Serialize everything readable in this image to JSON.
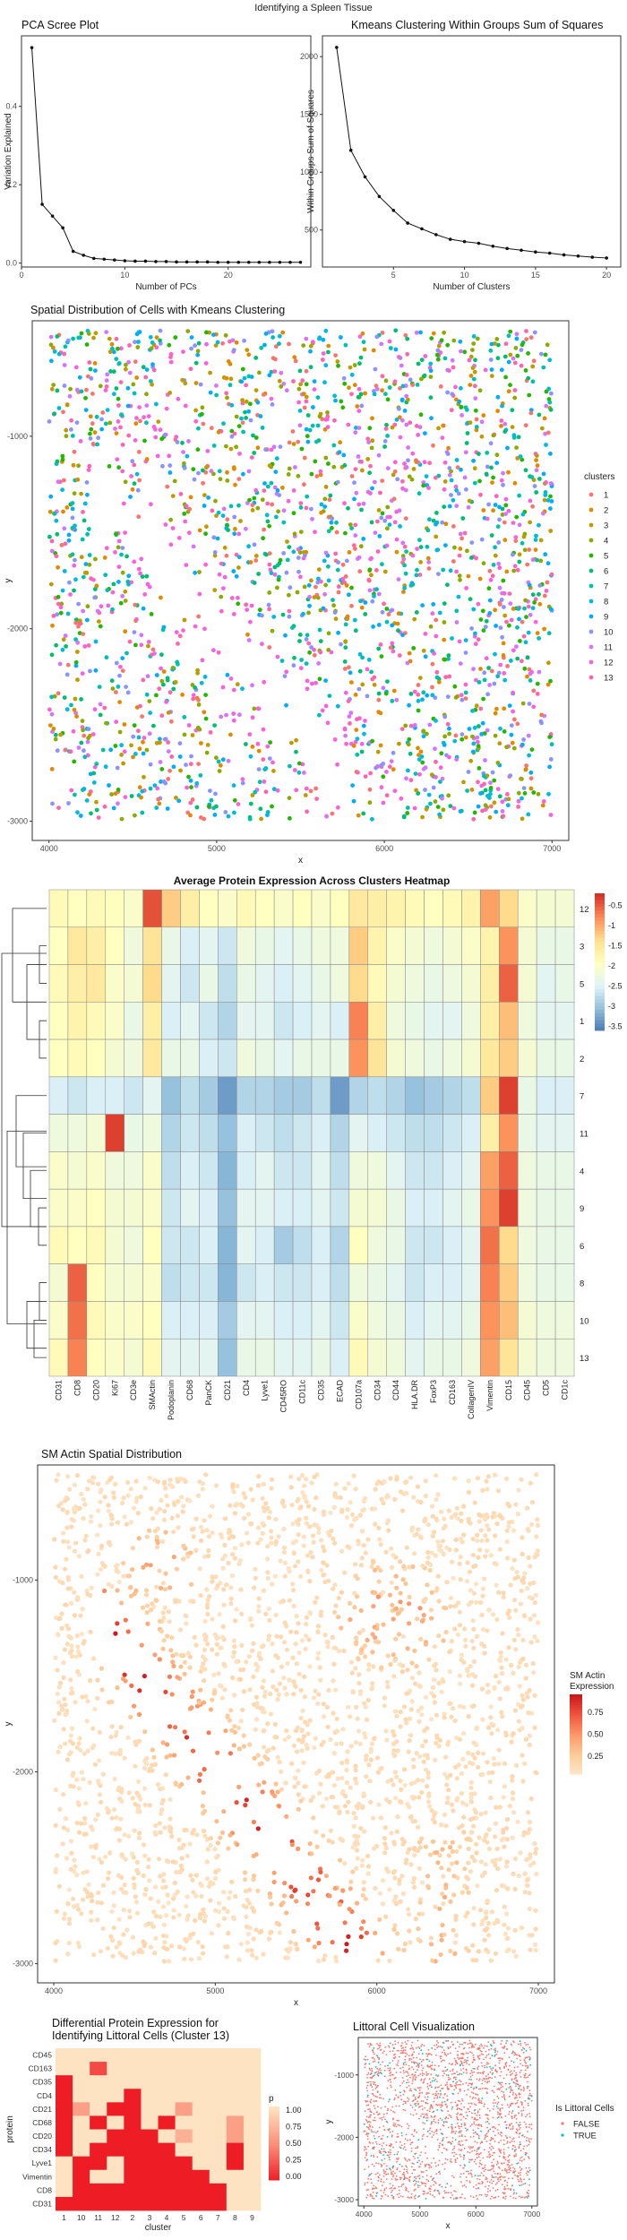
{
  "page_title": "Identifying a Spleen Tissue",
  "chart_data": [
    {
      "id": "pca_scree",
      "type": "line",
      "title": "PCA Scree Plot",
      "xlabel": "Number of PCs",
      "ylabel": "Variation Explained",
      "xlim": [
        0,
        28
      ],
      "ylim": [
        -0.01,
        0.58
      ],
      "xticks": [
        0,
        10,
        20
      ],
      "yticks": [
        0.0,
        0.2,
        0.4
      ],
      "ytick_labels": [
        "0.0",
        "0.2",
        "0.4"
      ],
      "x": [
        1,
        2,
        3,
        4,
        5,
        6,
        7,
        8,
        9,
        10,
        11,
        12,
        13,
        14,
        15,
        16,
        17,
        18,
        19,
        20,
        21,
        22,
        23,
        24,
        25,
        26,
        27
      ],
      "y": [
        0.55,
        0.15,
        0.12,
        0.09,
        0.03,
        0.02,
        0.012,
        0.01,
        0.008,
        0.006,
        0.005,
        0.005,
        0.004,
        0.004,
        0.003,
        0.003,
        0.003,
        0.003,
        0.002,
        0.002,
        0.002,
        0.002,
        0.002,
        0.002,
        0.002,
        0.002,
        0.002
      ]
    },
    {
      "id": "kmeans_wss",
      "type": "line",
      "title": "Kmeans Clustering Within Groups Sum of Squares",
      "xlabel": "Number of Clusters",
      "ylabel": "Within Groups Sum of Squares",
      "xlim": [
        0,
        21
      ],
      "ylim": [
        180,
        2180
      ],
      "xticks": [
        5,
        10,
        15,
        20
      ],
      "yticks": [
        500,
        1000,
        1500,
        2000
      ],
      "x": [
        1,
        2,
        3,
        4,
        5,
        6,
        7,
        8,
        9,
        10,
        11,
        12,
        13,
        14,
        15,
        16,
        17,
        18,
        19,
        20
      ],
      "y": [
        2080,
        1190,
        960,
        790,
        670,
        560,
        510,
        460,
        420,
        400,
        385,
        360,
        340,
        325,
        310,
        300,
        285,
        275,
        265,
        258
      ]
    },
    {
      "id": "spatial_clusters",
      "type": "scatter",
      "title": "Spatial Distribution of Cells with Kmeans Clustering",
      "xlabel": "x",
      "ylabel": "y",
      "xlim": [
        3900,
        7100
      ],
      "ylim": [
        -3100,
        -400
      ],
      "xticks": [
        4000,
        5000,
        6000,
        7000
      ],
      "yticks": [
        -3000,
        -2000,
        -1000
      ],
      "legend_title": "clusters",
      "legend_position": "right",
      "categories": [
        "1",
        "2",
        "3",
        "4",
        "5",
        "6",
        "7",
        "8",
        "9",
        "10",
        "11",
        "12",
        "13"
      ],
      "colors": [
        "#F8766D",
        "#E18A00",
        "#BE9C00",
        "#8CAB00",
        "#24B700",
        "#00BE70",
        "#00C1AB",
        "#00BBDA",
        "#00ACFC",
        "#8B93FF",
        "#D575FE",
        "#F962DD",
        "#FF65AC"
      ]
    },
    {
      "id": "protein_heatmap",
      "type": "heatmap",
      "title": "Average Protein Expression Across Clusters Heatmap",
      "columns": [
        "CD31",
        "CD8",
        "CD20",
        "Ki67",
        "CD3e",
        "SMActin",
        "Podoplanin",
        "CD68",
        "PanCK",
        "CD21",
        "CD4",
        "Lyve1",
        "CD45RO",
        "CD11c",
        "CD35",
        "ECAD",
        "CD107a",
        "CD34",
        "CD44",
        "HLA.DR",
        "FoxP3",
        "CD163",
        "CollagenIV",
        "Vimentin",
        "CD15",
        "CD45",
        "CD5",
        "CD1c"
      ],
      "rows": [
        "12",
        "3",
        "5",
        "1",
        "2",
        "7",
        "11",
        "4",
        "9",
        "6",
        "8",
        "10",
        "13"
      ],
      "values": [
        [
          -1.8,
          -1.9,
          -1.8,
          -1.9,
          -2.0,
          -0.4,
          -1.2,
          -1.6,
          -1.9,
          -2.0,
          -1.8,
          -1.9,
          -2.0,
          -1.9,
          -2.0,
          -1.9,
          -1.5,
          -1.6,
          -1.7,
          -1.8,
          -1.9,
          -1.8,
          -1.7,
          -0.9,
          -1.3,
          -2.0,
          -2.1,
          -2.1
        ],
        [
          -1.9,
          -1.5,
          -1.6,
          -1.9,
          -2.2,
          -1.4,
          -2.3,
          -2.5,
          -2.4,
          -2.6,
          -2.2,
          -2.3,
          -2.4,
          -2.3,
          -2.2,
          -2.2,
          -1.2,
          -1.7,
          -2.0,
          -2.1,
          -2.2,
          -2.1,
          -2.0,
          -1.7,
          -0.8,
          -2.1,
          -2.3,
          -2.3
        ],
        [
          -1.8,
          -1.6,
          -1.5,
          -2.0,
          -2.1,
          -1.3,
          -2.4,
          -2.6,
          -2.3,
          -2.7,
          -2.3,
          -2.4,
          -2.5,
          -2.4,
          -2.3,
          -2.2,
          -1.3,
          -1.8,
          -2.1,
          -2.2,
          -2.3,
          -2.2,
          -2.1,
          -1.6,
          -0.5,
          -2.1,
          -2.4,
          -2.3
        ],
        [
          -1.9,
          -1.7,
          -1.8,
          -2.0,
          -2.3,
          -1.6,
          -2.5,
          -2.4,
          -2.6,
          -2.8,
          -2.4,
          -2.4,
          -2.6,
          -2.5,
          -2.4,
          -2.5,
          -0.7,
          -1.6,
          -2.2,
          -2.3,
          -2.4,
          -2.4,
          -2.2,
          -1.6,
          -1.1,
          -2.2,
          -2.4,
          -2.4
        ],
        [
          -1.9,
          -1.8,
          -1.9,
          -2.1,
          -2.2,
          -1.5,
          -2.3,
          -2.3,
          -2.5,
          -2.6,
          -2.2,
          -2.3,
          -2.4,
          -2.3,
          -2.3,
          -2.3,
          -0.8,
          -1.4,
          -2.1,
          -2.2,
          -2.3,
          -2.2,
          -2.1,
          -1.5,
          -1.2,
          -2.1,
          -2.3,
          -2.3
        ],
        [
          -2.5,
          -2.6,
          -2.5,
          -2.5,
          -2.6,
          -2.4,
          -3.0,
          -2.7,
          -2.9,
          -3.3,
          -2.8,
          -2.8,
          -2.9,
          -2.9,
          -2.7,
          -3.3,
          -2.8,
          -2.7,
          -2.8,
          -3.0,
          -2.9,
          -2.8,
          -2.7,
          -1.2,
          -0.3,
          -2.3,
          -2.5,
          -2.5
        ],
        [
          -2.2,
          -2.2,
          -2.1,
          -0.3,
          -2.3,
          -2.2,
          -2.8,
          -2.6,
          -2.7,
          -3.0,
          -2.5,
          -2.6,
          -2.7,
          -2.6,
          -2.5,
          -2.8,
          -2.4,
          -2.5,
          -2.6,
          -2.7,
          -2.7,
          -2.6,
          -2.5,
          -1.6,
          -0.8,
          -2.3,
          -2.4,
          -2.4
        ],
        [
          -2.0,
          -2.1,
          -2.0,
          -2.2,
          -2.2,
          -2.0,
          -2.7,
          -2.5,
          -2.6,
          -3.1,
          -2.5,
          -2.4,
          -2.6,
          -2.6,
          -2.4,
          -2.7,
          -2.2,
          -2.2,
          -2.4,
          -2.6,
          -2.6,
          -2.5,
          -2.4,
          -0.9,
          -0.5,
          -2.2,
          -2.3,
          -2.3
        ],
        [
          -2.0,
          -2.0,
          -1.9,
          -2.1,
          -2.1,
          -2.0,
          -2.6,
          -2.4,
          -2.5,
          -3.0,
          -2.4,
          -2.4,
          -2.5,
          -2.5,
          -2.4,
          -2.6,
          -2.1,
          -2.1,
          -2.3,
          -2.5,
          -2.5,
          -2.4,
          -2.3,
          -0.8,
          -0.3,
          -2.2,
          -2.3,
          -2.3
        ],
        [
          -1.8,
          -1.9,
          -1.8,
          -2.1,
          -2.2,
          -1.9,
          -2.6,
          -2.6,
          -2.5,
          -3.1,
          -2.4,
          -2.5,
          -2.9,
          -2.7,
          -2.5,
          -2.8,
          -1.9,
          -2.2,
          -2.3,
          -2.6,
          -2.6,
          -2.5,
          -2.4,
          -0.6,
          -1.3,
          -2.2,
          -2.3,
          -2.3
        ],
        [
          -2.1,
          -0.5,
          -1.9,
          -2.1,
          -2.1,
          -2.0,
          -2.7,
          -2.6,
          -2.6,
          -3.1,
          -2.6,
          -2.5,
          -2.6,
          -2.6,
          -2.5,
          -2.7,
          -2.2,
          -2.3,
          -2.4,
          -2.6,
          -2.5,
          -2.5,
          -2.4,
          -0.7,
          -1.2,
          -2.2,
          -2.3,
          -2.3
        ],
        [
          -2.0,
          -0.6,
          -1.8,
          -2.0,
          -2.0,
          -1.9,
          -2.5,
          -2.5,
          -2.5,
          -2.9,
          -2.4,
          -2.4,
          -2.5,
          -2.5,
          -2.4,
          -2.6,
          -2.0,
          -2.2,
          -2.3,
          -2.5,
          -2.4,
          -2.4,
          -2.3,
          -0.8,
          -1.1,
          -2.1,
          -2.2,
          -2.2
        ],
        [
          -1.8,
          -0.7,
          -1.9,
          -2.0,
          -2.1,
          -1.8,
          -2.4,
          -2.4,
          -2.4,
          -3.0,
          -2.3,
          -2.3,
          -2.4,
          -2.4,
          -2.3,
          -2.5,
          -1.8,
          -2.1,
          -2.2,
          -2.4,
          -2.3,
          -2.3,
          -2.2,
          -0.9,
          -1.4,
          -2.1,
          -2.2,
          -2.2
        ]
      ],
      "legend_ticks": [
        -0.5,
        -1,
        -1.5,
        -2,
        -2.5,
        -3,
        -3.5
      ],
      "range": [
        -3.6,
        -0.2
      ]
    },
    {
      "id": "smactin_spatial",
      "type": "scatter",
      "title": "SM Actin Spatial Distribution",
      "xlabel": "x",
      "ylabel": "y",
      "xlim": [
        3900,
        7100
      ],
      "ylim": [
        -3100,
        -400
      ],
      "xticks": [
        4000,
        5000,
        6000,
        7000
      ],
      "yticks": [
        -3000,
        -2000,
        -1000
      ],
      "legend_title": "SM Actin Expression",
      "legend_ticks": [
        0.75,
        0.5,
        0.25
      ],
      "legend_position": "right"
    },
    {
      "id": "diff_expression",
      "type": "heatmap",
      "title": "Differential Protein Expression for Identifying Littoral Cells (Cluster 13)",
      "xlabel": "cluster",
      "ylabel": "protein",
      "columns": [
        "1",
        "10",
        "11",
        "12",
        "2",
        "3",
        "4",
        "5",
        "6",
        "7",
        "8",
        "9"
      ],
      "rows": [
        "CD45",
        "CD163",
        "CD35",
        "CD4",
        "CD21",
        "CD68",
        "CD20",
        "CD34",
        "Lyve1",
        "Vimentin",
        "CD8",
        "CD31"
      ],
      "p_values": [
        [
          1,
          1,
          1,
          1,
          1,
          1,
          1,
          1,
          1,
          1,
          1,
          1
        ],
        [
          1,
          1,
          0.2,
          1,
          1,
          1,
          1,
          1,
          1,
          1,
          1,
          1
        ],
        [
          0,
          1,
          1,
          1,
          1,
          1,
          1,
          1,
          1,
          1,
          1,
          1
        ],
        [
          0,
          1,
          1,
          1,
          0,
          1,
          1,
          1,
          1,
          1,
          1,
          1
        ],
        [
          0,
          0.6,
          1,
          0,
          0,
          1,
          1,
          0.6,
          1,
          1,
          1,
          1
        ],
        [
          0,
          1,
          0,
          1,
          0,
          1,
          0,
          1,
          1,
          1,
          0.6,
          1
        ],
        [
          0,
          1,
          1,
          0,
          0,
          0,
          1,
          0.7,
          1,
          1,
          0.6,
          1
        ],
        [
          0,
          1,
          0,
          0,
          0,
          0,
          0,
          1,
          1,
          1,
          0,
          1
        ],
        [
          1,
          0,
          0,
          1,
          0,
          0,
          0,
          0,
          1,
          1,
          0,
          1
        ],
        [
          1,
          0,
          1,
          1,
          0,
          0,
          0,
          0,
          0,
          1,
          1,
          1
        ],
        [
          1,
          0,
          0,
          0,
          0,
          0,
          0,
          0,
          0,
          0,
          1,
          1
        ],
        [
          0,
          0,
          0,
          0,
          0,
          0,
          0,
          0,
          0,
          0,
          1,
          1
        ]
      ],
      "legend_title": "p",
      "legend_ticks": [
        "1.00",
        "0.75",
        "0.50",
        "0.25",
        "0.00"
      ]
    },
    {
      "id": "littoral_spatial",
      "type": "scatter",
      "title": "Littoral Cell Visualization",
      "xlabel": "x",
      "ylabel": "y",
      "xlim": [
        3900,
        7100
      ],
      "ylim": [
        -3100,
        -400
      ],
      "xticks": [
        4000,
        5000,
        6000,
        7000
      ],
      "yticks": [
        -3000,
        -2000,
        -1000
      ],
      "legend_title": "Is Littoral Cells",
      "legend_entries": [
        "FALSE",
        "TRUE"
      ],
      "colors": [
        "#F8766D",
        "#00BFC4"
      ]
    }
  ]
}
